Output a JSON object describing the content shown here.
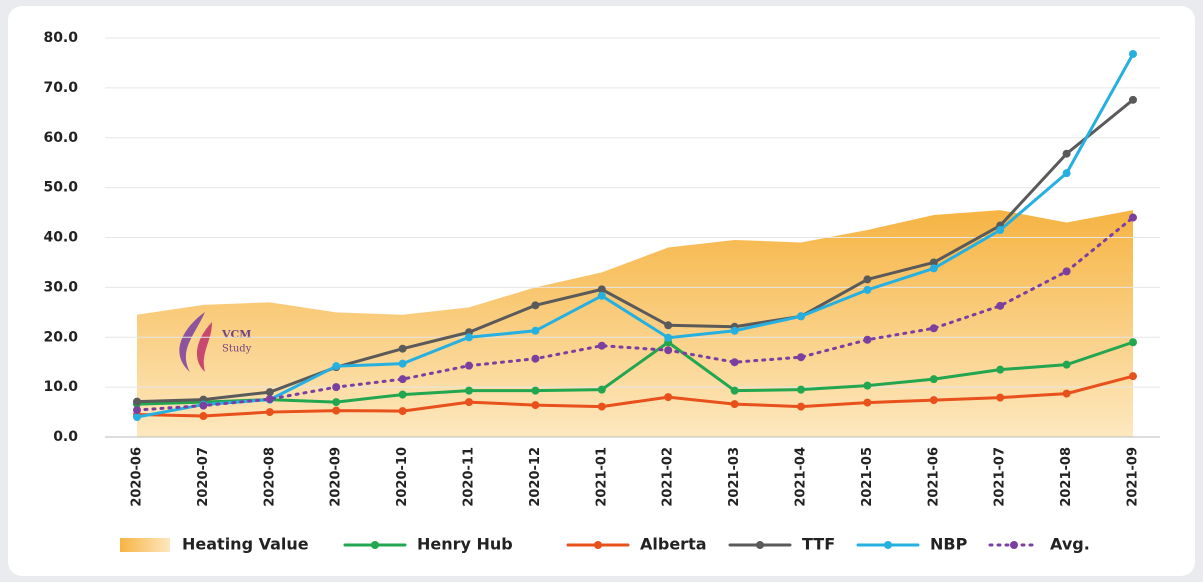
{
  "chart_data": {
    "type": "line",
    "categories": [
      "2020-06",
      "2020-07",
      "2020-08",
      "2020-09",
      "2020-10",
      "2020-11",
      "2020-12",
      "2021-01",
      "2021-02",
      "2021-03",
      "2021-04",
      "2021-05",
      "2021-06",
      "2021-07",
      "2021-08",
      "2021-09"
    ],
    "series": [
      {
        "name": "Heating Value",
        "color": "#f5b443",
        "style": "area",
        "values": [
          24.5,
          26.5,
          27,
          25,
          24.5,
          26,
          30,
          33,
          38,
          39.5,
          39,
          41.5,
          44.5,
          45.5,
          43,
          45.5
        ]
      },
      {
        "name": "Henry Hub",
        "color": "#22a64f",
        "style": "solid",
        "values": [
          6.6,
          7,
          7.5,
          7,
          8.5,
          9.3,
          9.3,
          9.5,
          19,
          9.3,
          9.5,
          10.3,
          11.6,
          13.5,
          14.5,
          19
        ]
      },
      {
        "name": "Alberta",
        "color": "#e8501c",
        "style": "solid",
        "values": [
          4.5,
          4.2,
          5,
          5.3,
          5.2,
          7,
          6.4,
          6.1,
          8,
          6.6,
          6.1,
          6.9,
          7.4,
          7.9,
          8.7,
          12.2
        ]
      },
      {
        "name": "TTF",
        "color": "#5a5a5a",
        "style": "solid",
        "values": [
          7.1,
          7.5,
          9,
          14,
          17.7,
          21,
          26.4,
          29.6,
          22.4,
          22.1,
          24.2,
          31.6,
          35,
          42.4,
          56.8,
          67.6
        ]
      },
      {
        "name": "NBP",
        "color": "#26b0e0",
        "style": "solid",
        "values": [
          4,
          6.5,
          7.5,
          14.2,
          14.7,
          20,
          21.3,
          28.3,
          19.9,
          21.3,
          24.2,
          29.5,
          33.8,
          41.5,
          52.9,
          76.8
        ]
      },
      {
        "name": "Avg.",
        "color": "#7b3fa0",
        "style": "dotted",
        "values": [
          5.4,
          6.3,
          7.6,
          10,
          11.6,
          14.3,
          15.7,
          18.3,
          17.4,
          15,
          16,
          19.5,
          21.8,
          26.3,
          33.2,
          44
        ]
      }
    ],
    "ylim": [
      0,
      80
    ],
    "yticks": [
      {
        "value": 0,
        "label": "0.0"
      },
      {
        "value": 10,
        "label": "10.0"
      },
      {
        "value": 20,
        "label": "20.0"
      },
      {
        "value": 30,
        "label": "30.0"
      },
      {
        "value": 40,
        "label": "40.0"
      },
      {
        "value": 50,
        "label": "50.0"
      },
      {
        "value": 60,
        "label": "60.0"
      },
      {
        "value": 70,
        "label": "70.0"
      },
      {
        "value": 80,
        "label": "80.0"
      }
    ],
    "grid": true,
    "legend": "bottom",
    "watermark": [
      "VCM",
      "Study"
    ]
  }
}
